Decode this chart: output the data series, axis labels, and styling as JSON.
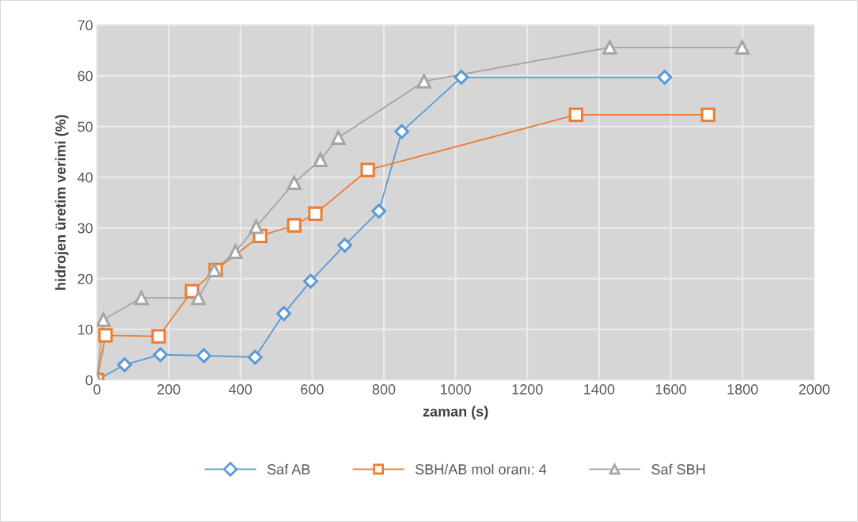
{
  "chart_data": {
    "type": "line",
    "xlabel": "zaman (s)",
    "ylabel": "hidrojen üretim verimi (%)",
    "xlim": [
      0,
      2000
    ],
    "xticks": [
      0,
      200,
      400,
      600,
      800,
      1000,
      1200,
      1400,
      1600,
      1800,
      2000
    ],
    "ylim": [
      0,
      70
    ],
    "yticks": [
      0,
      10,
      20,
      30,
      40,
      50,
      60,
      70
    ],
    "grid": true,
    "legend": "bottom",
    "series": [
      {
        "name": "Saf AB",
        "color": "#5b9bd5",
        "marker": "diamond",
        "x": [
          0,
          77,
          177,
          298,
          441,
          521,
          596,
          691,
          786,
          850,
          1016,
          1583
        ],
        "values": [
          0,
          3.0,
          5.0,
          4.8,
          4.5,
          13.1,
          19.5,
          26.6,
          33.3,
          49,
          59.7,
          59.7
        ]
      },
      {
        "name": "SBH/AB mol oranı: 4",
        "color": "#ed7d31",
        "marker": "square",
        "x": [
          0,
          24,
          172,
          265,
          331,
          455,
          550,
          609,
          755,
          1336,
          1704
        ],
        "values": [
          0,
          8.8,
          8.6,
          17.5,
          21.7,
          28.4,
          30.5,
          32.8,
          41.4,
          52.3,
          52.3
        ]
      },
      {
        "name": "Saf SBH",
        "color": "#a5a5a5",
        "marker": "triangle",
        "x": [
          0,
          18,
          124,
          283,
          327,
          386,
          444,
          550,
          623,
          673,
          912,
          1430,
          1799
        ],
        "values": [
          0,
          11.9,
          16.2,
          16.2,
          21.7,
          25.3,
          30.2,
          38.9,
          43.4,
          47.8,
          58.9,
          65.6,
          65.6
        ]
      }
    ]
  }
}
